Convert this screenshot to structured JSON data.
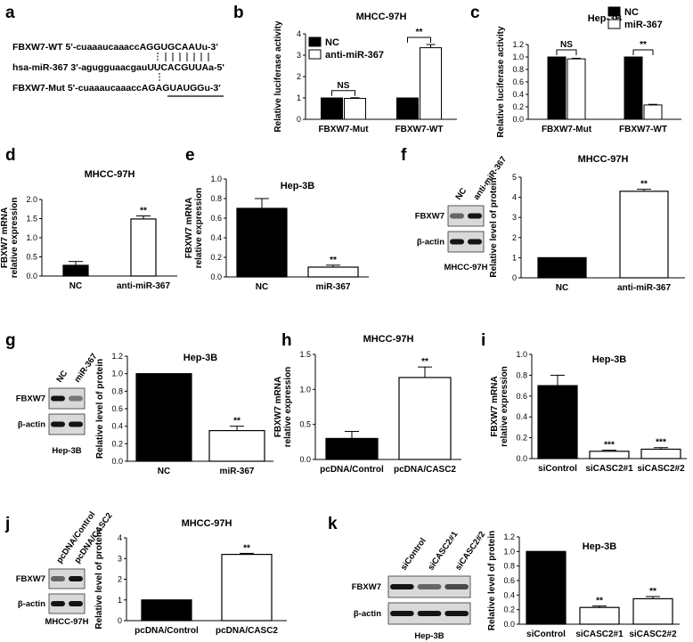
{
  "panel_a": {
    "label": "a",
    "rows": [
      {
        "name": "FBXW7-WT",
        "prefix": "5'-cuaaaucaaacc",
        "site": "AGGUGCAAU",
        "suffix": "u-3'"
      },
      {
        "name": "hsa-miR-367",
        "prefix": "3'-agugguaacgau",
        "site": "UUCACGUUA",
        "suffix": "a-5'"
      },
      {
        "name": "FBXW7-Mut",
        "prefix": "5'-cuaaaucaaacc",
        "site": "AGAGUAUGG",
        "suffix": "u-3'"
      }
    ]
  },
  "blots": {
    "panel_f": {
      "lanes": [
        "NC",
        "anti-miR-367"
      ],
      "proteins": [
        "FBXW7",
        "β-actin"
      ],
      "caption": "MHCC-97H"
    },
    "panel_g": {
      "lanes": [
        "NC",
        "miR-367"
      ],
      "proteins": [
        "FBXW7",
        "β-actin"
      ],
      "caption": "Hep-3B"
    },
    "panel_j": {
      "lanes": [
        "pcDNA/Control",
        "pcDNA/CASC2"
      ],
      "proteins": [
        "FBXW7",
        "β-actin"
      ],
      "caption": "MHCC-97H"
    },
    "panel_k": {
      "lanes": [
        "siControl",
        "siCASC2#1",
        "siCASC2#2"
      ],
      "proteins": [
        "FBXW7",
        "β-actin"
      ],
      "caption": "Hep-3B"
    }
  },
  "chart_data": [
    {
      "id": "b",
      "type": "bar",
      "title": "MHCC-97H",
      "ylabel": "Relative luciferase activity",
      "ylim": [
        0,
        4
      ],
      "yticks": [
        "0",
        "1",
        "2",
        "3",
        "4"
      ],
      "categories": [
        "FBXW7-Mut",
        "FBXW7-WT"
      ],
      "series": [
        {
          "name": "NC",
          "values": [
            1.0,
            1.0
          ],
          "errors": [
            0,
            0
          ],
          "fill": "#000000"
        },
        {
          "name": "anti-miR-367",
          "values": [
            0.98,
            3.35
          ],
          "errors": [
            0.03,
            0.15
          ],
          "fill": "#ffffff"
        }
      ],
      "significance": [
        "NS",
        "**"
      ],
      "legend": "top-left"
    },
    {
      "id": "c",
      "type": "bar",
      "title": "Hep-3B",
      "ylabel": "Relative luciferase activity",
      "ylim": [
        0,
        1.2
      ],
      "yticks": [
        "0.0",
        "0.2",
        "0.4",
        "0.6",
        "0.8",
        "1.0",
        "1.2"
      ],
      "categories": [
        "FBXW7-Mut",
        "FBXW7-WT"
      ],
      "series": [
        {
          "name": "NC",
          "values": [
            1.0,
            1.0
          ],
          "errors": [
            0,
            0
          ],
          "fill": "#000000"
        },
        {
          "name": "miR-367",
          "values": [
            0.97,
            0.23
          ],
          "errors": [
            0.01,
            0.01
          ],
          "fill": "#ffffff"
        }
      ],
      "significance": [
        "NS",
        "**"
      ],
      "legend": "top-right"
    },
    {
      "id": "d",
      "type": "bar",
      "title": "MHCC-97H",
      "ylabel": [
        "FBXW7 mRNA",
        "relative expression"
      ],
      "ylim": [
        0,
        2.0
      ],
      "yticks": [
        "0.0",
        "0.5",
        "1.0",
        "1.5",
        "2.0"
      ],
      "categories": [
        "NC",
        "anti-miR-367"
      ],
      "values": [
        0.28,
        1.49
      ],
      "errors": [
        0.1,
        0.08
      ],
      "fills": [
        "#000000",
        "#ffffff"
      ],
      "marks": [
        "",
        "**"
      ]
    },
    {
      "id": "e",
      "type": "bar",
      "title": "Hep-3B",
      "ylabel": [
        "FBXW7 mRNA",
        "relative expression"
      ],
      "ylim": [
        0,
        1.0
      ],
      "yticks": [
        "0.0",
        "0.2",
        "0.4",
        "0.6",
        "0.8",
        "1.0"
      ],
      "categories": [
        "NC",
        "miR-367"
      ],
      "values": [
        0.7,
        0.1
      ],
      "errors": [
        0.1,
        0.02
      ],
      "fills": [
        "#000000",
        "#ffffff"
      ],
      "marks": [
        "",
        "**"
      ]
    },
    {
      "id": "f",
      "type": "bar",
      "title": "MHCC-97H",
      "ylabel": "Relative level of protein",
      "ylim": [
        0,
        5
      ],
      "yticks": [
        "0",
        "1",
        "2",
        "3",
        "4",
        "5"
      ],
      "categories": [
        "NC",
        "anti-miR-367"
      ],
      "values": [
        1.0,
        4.3
      ],
      "errors": [
        0,
        0.1
      ],
      "fills": [
        "#000000",
        "#ffffff"
      ],
      "marks": [
        "",
        "**"
      ]
    },
    {
      "id": "g",
      "type": "bar",
      "title": "Hep-3B",
      "ylabel": "Relative level of protein",
      "ylim": [
        0,
        1.2
      ],
      "yticks": [
        "0.0",
        "0.2",
        "0.4",
        "0.6",
        "0.8",
        "1.0",
        "1.2"
      ],
      "categories": [
        "NC",
        "miR-367"
      ],
      "values": [
        1.0,
        0.35
      ],
      "errors": [
        0,
        0.05
      ],
      "fills": [
        "#000000",
        "#ffffff"
      ],
      "marks": [
        "",
        "**"
      ]
    },
    {
      "id": "h",
      "type": "bar",
      "title": "MHCC-97H",
      "ylabel": [
        "FBXW7 mRNA",
        "relative expression"
      ],
      "ylim": [
        0,
        1.5
      ],
      "yticks": [
        "0.0",
        "0.5",
        "1.0",
        "1.5"
      ],
      "categories": [
        "pcDNA/Control",
        "pcDNA/CASC2"
      ],
      "values": [
        0.3,
        1.17
      ],
      "errors": [
        0.1,
        0.15
      ],
      "fills": [
        "#000000",
        "#ffffff"
      ],
      "marks": [
        "",
        "**"
      ]
    },
    {
      "id": "i",
      "type": "bar",
      "title": "Hep-3B",
      "ylabel": [
        "FBXW7 mRNA",
        "relative expression"
      ],
      "ylim": [
        0,
        1.0
      ],
      "yticks": [
        "0.0",
        "0.2",
        "0.4",
        "0.6",
        "0.8",
        "1.0"
      ],
      "categories": [
        "siControl",
        "siCASC2#1",
        "siCASC2#2"
      ],
      "values": [
        0.7,
        0.07,
        0.09
      ],
      "errors": [
        0.1,
        0.01,
        0.015
      ],
      "fills": [
        "#000000",
        "#ffffff",
        "#ffffff"
      ],
      "marks": [
        "",
        "***",
        "***"
      ]
    },
    {
      "id": "j",
      "type": "bar",
      "title": "MHCC-97H",
      "ylabel": "Relative level of protein",
      "ylim": [
        0,
        4
      ],
      "yticks": [
        "0",
        "1",
        "2",
        "3",
        "4"
      ],
      "categories": [
        "pcDNA/Control",
        "pcDNA/CASC2"
      ],
      "values": [
        1.0,
        3.2
      ],
      "errors": [
        0,
        0.05
      ],
      "fills": [
        "#000000",
        "#ffffff"
      ],
      "marks": [
        "",
        "**"
      ]
    },
    {
      "id": "k",
      "type": "bar",
      "title": "Hep-3B",
      "ylabel": "Relative level of protein",
      "ylim": [
        0,
        1.2
      ],
      "yticks": [
        "0.0",
        "0.2",
        "0.4",
        "0.6",
        "0.8",
        "1.0",
        "1.2"
      ],
      "categories": [
        "siControl",
        "siCASC2#1",
        "siCASC2#2"
      ],
      "values": [
        1.0,
        0.23,
        0.35
      ],
      "errors": [
        0,
        0.02,
        0.03
      ],
      "fills": [
        "#000000",
        "#ffffff",
        "#ffffff"
      ],
      "marks": [
        "",
        "**",
        "**"
      ]
    }
  ]
}
